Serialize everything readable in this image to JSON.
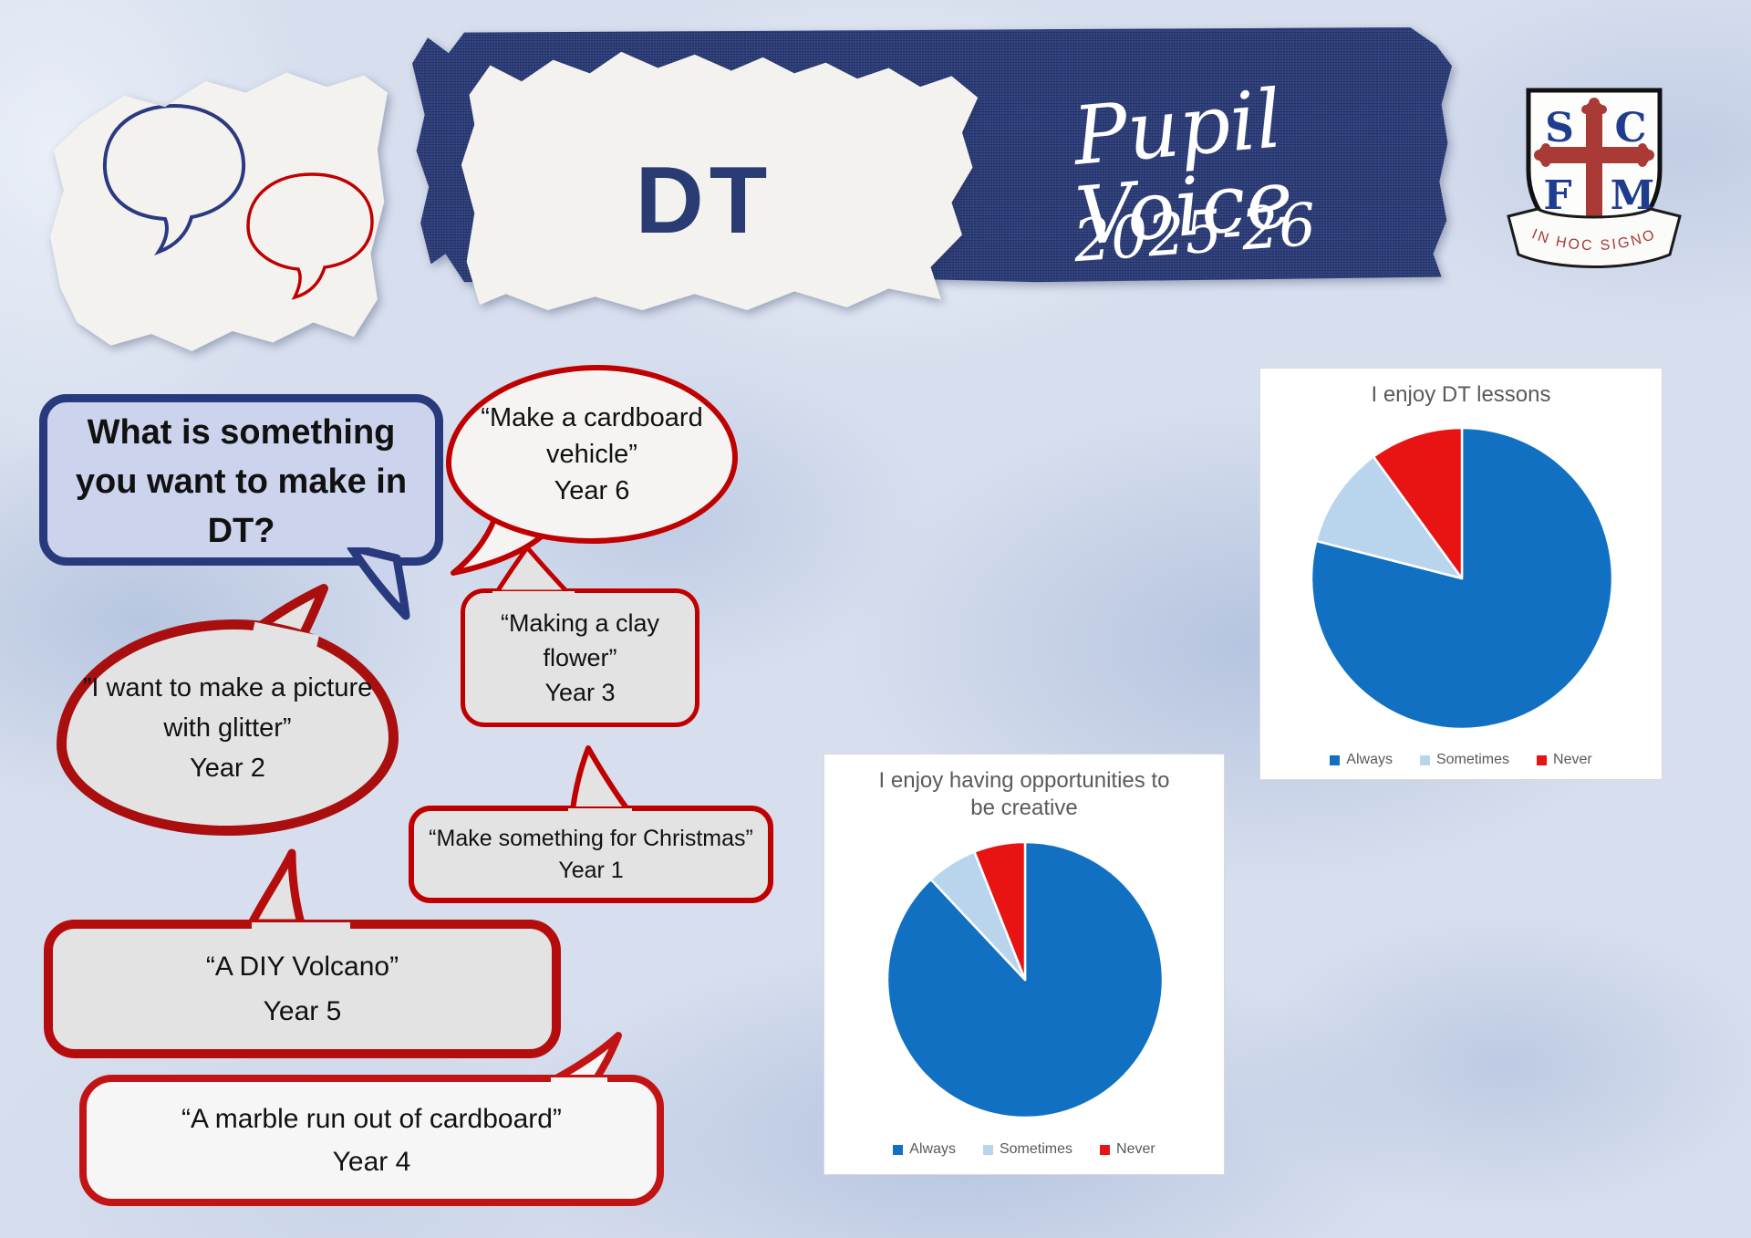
{
  "banner": {
    "subject": "DT",
    "script_title": "Pupil Voice",
    "script_years": "2025-26"
  },
  "crest": {
    "letters": [
      "S",
      "C",
      "F",
      "M"
    ],
    "motto": "IN HOC SIGNO"
  },
  "question": {
    "text": "What is something you want to make in DT?"
  },
  "bubbles": [
    {
      "quote": "“Make a cardboard vehicle”",
      "year": "Year 6"
    },
    {
      "quote": "“Making a clay flower”",
      "year": "Year 3"
    },
    {
      "quote": "”I want to make a picture with glitter”",
      "year": "Year 2"
    },
    {
      "quote": "“Make something for Christmas”",
      "year": "Year 1"
    },
    {
      "quote": "“A DIY Volcano”",
      "year": "Year 5"
    },
    {
      "quote": "“A marble run out of cardboard”",
      "year": "Year 4"
    }
  ],
  "colors": {
    "banner_navy": "#2e3f7c",
    "question_border_navy": "#283a7d",
    "question_fill": "#ccd3ec",
    "bubble_red": "#c00000",
    "bubble_dark_red": "#a90f0f",
    "chart_text_gray": "#595959"
  },
  "chart_data": [
    {
      "type": "pie",
      "title": "I enjoy DT lessons",
      "categories": [
        "Always",
        "Sometimes",
        "Never"
      ],
      "values": [
        79,
        11,
        10
      ],
      "colors": [
        "#1170c2",
        "#b9d5ee",
        "#e81313"
      ],
      "legend_position": "bottom",
      "start_angle_deg": 0,
      "direction": "clockwise"
    },
    {
      "type": "pie",
      "title": "I enjoy having opportunities to be creative",
      "categories": [
        "Always",
        "Sometimes",
        "Never"
      ],
      "values": [
        88,
        6,
        6
      ],
      "colors": [
        "#1170c2",
        "#b9d5ee",
        "#e81313"
      ],
      "legend_position": "bottom",
      "start_angle_deg": 0,
      "direction": "clockwise"
    }
  ]
}
